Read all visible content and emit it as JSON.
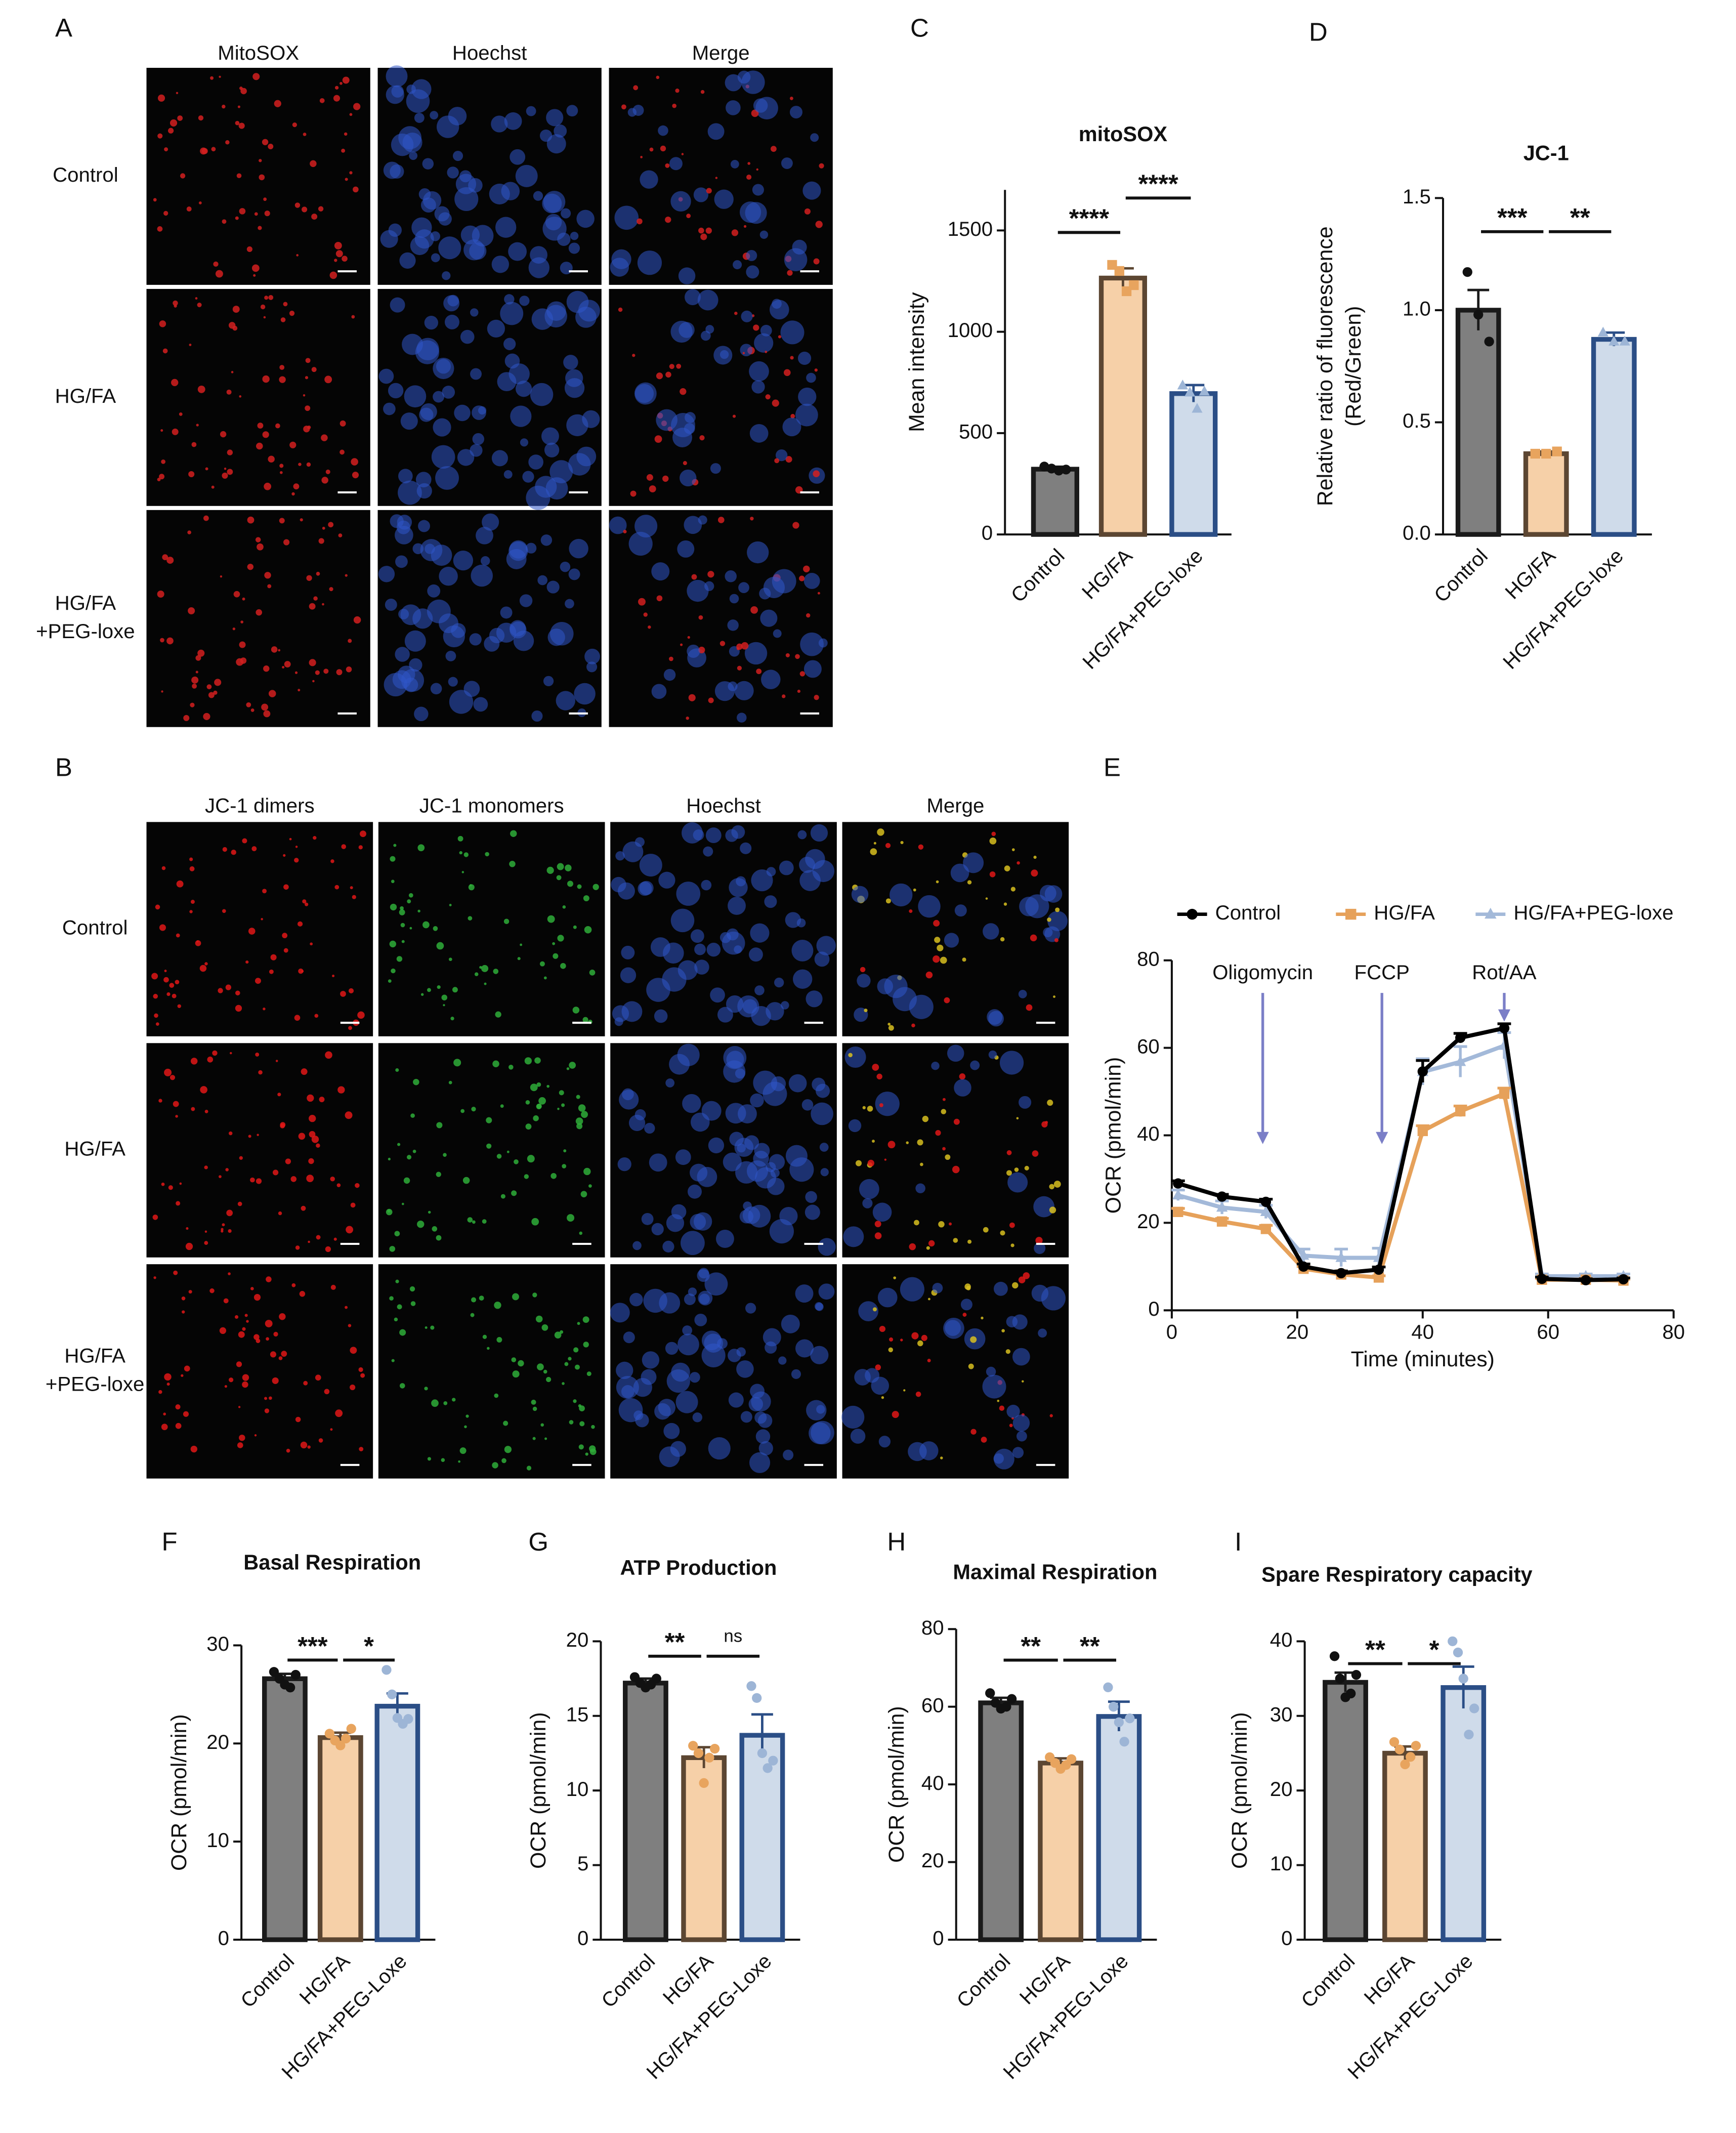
{
  "image_panels": [
    {
      "label": "A",
      "columns": [
        "MitoSOX",
        "Hoechst",
        "Merge"
      ],
      "rows": [
        [
          "Control"
        ],
        [
          "HG/FA"
        ],
        [
          "HG/FA",
          "+PEG-loxe"
        ]
      ]
    },
    {
      "label": "B",
      "columns": [
        "JC-1 dimers",
        "JC-1 monomers",
        "Hoechst",
        "Merge"
      ],
      "rows": [
        [
          "Control"
        ],
        [
          "HG/FA"
        ],
        [
          "HG/FA",
          "+PEG-loxe"
        ]
      ]
    }
  ],
  "chart_data": [
    {
      "type": "bar",
      "panel_label": "C",
      "title": "mitoSOX",
      "ylabel": [
        "Mean intensity"
      ],
      "categories": [
        "Control",
        "HG/FA",
        "HG/FA+PEG-loxe"
      ],
      "values": [
        322,
        1265,
        695
      ],
      "errors": [
        12,
        48,
        42
      ],
      "points": [
        [
          335,
          325,
          315,
          320
        ],
        [
          1330,
          1300,
          1200,
          1230
        ],
        [
          735,
          700,
          620,
          705
        ]
      ],
      "colors": [
        "#7f7f7f",
        "#f6d0a8",
        "#cfdbea"
      ],
      "edge_colors": [
        "#1a1a1a",
        "#5c4632",
        "#2b4e86"
      ],
      "point_colors": [
        "#111111",
        "#e8a45e",
        "#9db5d6"
      ],
      "point_markers": [
        "circle",
        "square",
        "triangle"
      ],
      "ylim": [
        0,
        1700
      ],
      "yticks": [
        0,
        500,
        1000,
        1500
      ],
      "significance": [
        {
          "from": 0,
          "to": 1,
          "label": "****",
          "y": 1490
        },
        {
          "from": 1,
          "to": 2,
          "label": "****",
          "y": 1660
        }
      ]
    },
    {
      "type": "bar",
      "panel_label": "D",
      "title": "JC-1",
      "ylabel": [
        "Relative ratio of fluorescence",
        "(Red/Green)"
      ],
      "categories": [
        "Control",
        "HG/FA",
        "HG/FA+PEG-loxe"
      ],
      "values": [
        1.0,
        0.36,
        0.87
      ],
      "errors": [
        0.09,
        0.01,
        0.03
      ],
      "points": [
        [
          1.17,
          0.98,
          0.86
        ],
        [
          0.36,
          0.36,
          0.37
        ],
        [
          0.9,
          0.86,
          0.86
        ]
      ],
      "colors": [
        "#7f7f7f",
        "#f6d0a8",
        "#cfdbea"
      ],
      "edge_colors": [
        "#1a1a1a",
        "#5c4632",
        "#2b4e86"
      ],
      "point_colors": [
        "#111111",
        "#e8a45e",
        "#9db5d6"
      ],
      "point_markers": [
        "circle",
        "square",
        "triangle"
      ],
      "ylim": [
        0,
        1.5
      ],
      "yticks": [
        {
          "value": 0,
          "label": "0.0"
        },
        {
          "value": 0.5,
          "label": "0.5"
        },
        {
          "value": 1,
          "label": "1.0"
        },
        {
          "value": 1.5,
          "label": "1.5"
        }
      ],
      "significance": [
        {
          "from": 0,
          "to": 1,
          "label": "***",
          "y": 1.35
        },
        {
          "from": 1,
          "to": 2,
          "label": "**",
          "y": 1.35
        }
      ]
    },
    {
      "type": "line",
      "panel_label": "E",
      "xlabel": "Time (minutes)",
      "ylabel": "OCR (pmol/min)",
      "x": [
        1,
        8,
        15,
        21,
        27,
        33,
        40,
        46,
        53,
        59,
        66,
        72
      ],
      "series": [
        {
          "name": "Control",
          "color": "#000000",
          "marker": "circle",
          "values": [
            29,
            26,
            24.8,
            10,
            8.5,
            9.3,
            54.6,
            62.3,
            64.5,
            7.2,
            6.9,
            7.1
          ],
          "errors": [
            0.6,
            0.5,
            0.6,
            0.6,
            0.5,
            0.6,
            2.5,
            1.0,
            1.0,
            0.4,
            0.3,
            0.3
          ]
        },
        {
          "name": "HG/FA",
          "color": "#e6a15a",
          "marker": "square",
          "values": [
            22.5,
            20.3,
            18.6,
            9.5,
            8.2,
            7.5,
            41,
            45.5,
            49.5,
            7,
            7,
            6.8
          ],
          "errors": [
            0.8,
            0.7,
            0.8,
            0.5,
            0.5,
            0.4,
            1.2,
            1.2,
            1.3,
            0.3,
            0.3,
            0.3
          ]
        },
        {
          "name": "HG/FA+PEG-loxe",
          "color": "#a3b9d9",
          "marker": "triangle",
          "values": [
            26.3,
            23.5,
            22.5,
            12.5,
            12,
            12,
            54.5,
            56.8,
            60.5,
            7.8,
            7.8,
            7.8
          ],
          "errors": [
            1.2,
            1.5,
            1.5,
            1.5,
            2,
            2.2,
            3,
            3.5,
            3,
            0.5,
            0.5,
            0.5
          ]
        }
      ],
      "annotations": [
        {
          "text": "Oligomycin",
          "x": 14.5
        },
        {
          "text": "FCCP",
          "x": 33.5
        },
        {
          "text": "Rot/AA",
          "x": 53
        }
      ],
      "xlim": [
        0,
        80
      ],
      "xticks": [
        0,
        20,
        40,
        60,
        80
      ],
      "ylim": [
        0,
        80
      ],
      "yticks": [
        0,
        20,
        40,
        60,
        80
      ],
      "legend": "top"
    },
    {
      "type": "bar",
      "panel_label": "F",
      "title": "Basal Respiration",
      "ylabel": [
        "OCR (pmol/min)"
      ],
      "categories": [
        "Control",
        "HG/FA",
        "HG/FA+PEG-Loxe"
      ],
      "values": [
        26.6,
        20.6,
        23.8
      ],
      "errors": [
        0.5,
        0.5,
        1.3
      ],
      "points": [
        [
          27.3,
          26.6,
          26.0,
          25.7,
          27.0
        ],
        [
          21.0,
          20.3,
          19.8,
          20.5,
          21.5
        ],
        [
          27.5,
          25.0,
          22.6,
          22.0,
          22.5
        ]
      ],
      "colors": [
        "#7f7f7f",
        "#f6d0a8",
        "#cfdbea"
      ],
      "edge_colors": [
        "#1a1a1a",
        "#5c4632",
        "#2b4e86"
      ],
      "point_colors": [
        "#111111",
        "#e8a45e",
        "#9db5d6"
      ],
      "point_markers": [
        "circle",
        "circle",
        "circle"
      ],
      "ylim": [
        0,
        30
      ],
      "yticks": [
        0,
        10,
        20,
        30
      ],
      "significance": [
        {
          "from": 0,
          "to": 1,
          "label": "***",
          "y": 28.5
        },
        {
          "from": 1,
          "to": 2,
          "label": "*",
          "y": 28.5
        }
      ]
    },
    {
      "type": "bar",
      "panel_label": "G",
      "title": "ATP Production",
      "ylabel": [
        "OCR (pmol/min)"
      ],
      "categories": [
        "Control",
        "HG/FA",
        "HG/FA+PEG-Loxe"
      ],
      "values": [
        17.2,
        12.2,
        13.7
      ],
      "errors": [
        0.3,
        0.7,
        1.4
      ],
      "points": [
        [
          17.6,
          17.2,
          16.9,
          17.1,
          17.5
        ],
        [
          13.0,
          12.5,
          10.5,
          12.2,
          12.8
        ],
        [
          17.0,
          16.2,
          12.5,
          11.5,
          12.0
        ]
      ],
      "colors": [
        "#7f7f7f",
        "#f6d0a8",
        "#cfdbea"
      ],
      "edge_colors": [
        "#1a1a1a",
        "#5c4632",
        "#2b4e86"
      ],
      "point_colors": [
        "#111111",
        "#e8a45e",
        "#9db5d6"
      ],
      "point_markers": [
        "circle",
        "circle",
        "circle"
      ],
      "ylim": [
        0,
        20
      ],
      "yticks": [
        0,
        5,
        10,
        15,
        20
      ],
      "significance": [
        {
          "from": 0,
          "to": 1,
          "label": "**",
          "y": 19
        },
        {
          "from": 1,
          "to": 2,
          "label": "ns",
          "y": 19
        }
      ]
    },
    {
      "type": "bar",
      "panel_label": "H",
      "title": "Maximal Respiration",
      "ylabel": [
        "OCR (pmol/min)"
      ],
      "categories": [
        "Control",
        "HG/FA",
        "HG/FA+PEG-Loxe"
      ],
      "values": [
        61,
        45.5,
        57.5
      ],
      "errors": [
        1.3,
        1.2,
        3.8
      ],
      "points": [
        [
          63.5,
          61,
          59.5,
          60,
          62
        ],
        [
          47,
          45.5,
          44,
          45,
          46.5
        ],
        [
          65,
          60,
          56,
          51,
          57
        ]
      ],
      "colors": [
        "#7f7f7f",
        "#f6d0a8",
        "#cfdbea"
      ],
      "edge_colors": [
        "#1a1a1a",
        "#5c4632",
        "#2b4e86"
      ],
      "point_colors": [
        "#111111",
        "#e8a45e",
        "#9db5d6"
      ],
      "point_markers": [
        "circle",
        "circle",
        "circle"
      ],
      "ylim": [
        0,
        80
      ],
      "yticks": [
        0,
        20,
        40,
        60,
        80
      ],
      "significance": [
        {
          "from": 0,
          "to": 1,
          "label": "**",
          "y": 72
        },
        {
          "from": 1,
          "to": 2,
          "label": "**",
          "y": 72
        }
      ]
    },
    {
      "type": "bar",
      "panel_label": "I",
      "title": "Spare Respiratory capacity",
      "ylabel": [
        "OCR (pmol/min)"
      ],
      "categories": [
        "Control",
        "HG/FA",
        "HG/FA+PEG-Loxe"
      ],
      "values": [
        34.5,
        25,
        33.8
      ],
      "errors": [
        1.3,
        0.9,
        2.8
      ],
      "points": [
        [
          38,
          35,
          32.5,
          33,
          35.5
        ],
        [
          26.5,
          25.5,
          23.5,
          24.5,
          26
        ],
        [
          40,
          38.5,
          35,
          27.5,
          31
        ]
      ],
      "colors": [
        "#7f7f7f",
        "#f6d0a8",
        "#cfdbea"
      ],
      "edge_colors": [
        "#1a1a1a",
        "#5c4632",
        "#2b4e86"
      ],
      "point_colors": [
        "#111111",
        "#e8a45e",
        "#9db5d6"
      ],
      "point_markers": [
        "circle",
        "circle",
        "circle"
      ],
      "ylim": [
        0,
        40
      ],
      "yticks": [
        0,
        10,
        20,
        30,
        40
      ],
      "significance": [
        {
          "from": 0,
          "to": 1,
          "label": "**",
          "y": 37
        },
        {
          "from": 1,
          "to": 2,
          "label": "*",
          "y": 37
        }
      ]
    }
  ]
}
